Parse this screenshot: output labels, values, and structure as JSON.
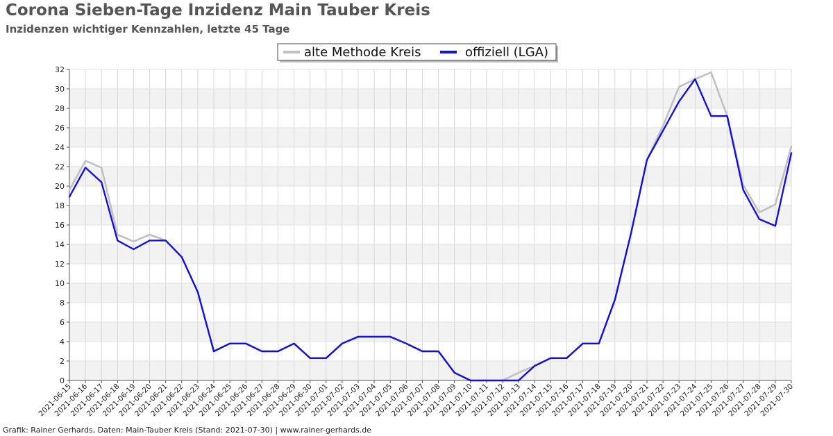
{
  "header": {
    "title": "Corona Sieben-Tage Inzidenz Main Tauber Kreis",
    "subtitle": "Inzidenzen wichtiger Kennzahlen, letzte 45 Tage"
  },
  "footer": {
    "text": "Grafik: Rainer Gerhards, Daten: Main-Tauber Kreis (Stand: 2021-07-30) | www.rainer-gerhards.de"
  },
  "colors": {
    "series_alt": "#c0c0c0",
    "series_offiziell": "#1010e0",
    "band": "#f2f2f2",
    "grid": "#d8d8d8"
  },
  "chart_data": {
    "type": "line",
    "title": "Corona Sieben-Tage Inzidenz Main Tauber Kreis",
    "subtitle": "Inzidenzen wichtiger Kennzahlen, letzte 45 Tage",
    "xlabel": "",
    "ylabel": "",
    "ylim": [
      0,
      32
    ],
    "yticks": [
      0,
      2,
      4,
      6,
      8,
      10,
      12,
      14,
      16,
      18,
      20,
      22,
      24,
      26,
      28,
      30,
      32
    ],
    "grid": true,
    "legend_position": "top-center",
    "x": [
      "2021-06-15",
      "2021-06-16",
      "2021-06-17",
      "2021-06-18",
      "2021-06-19",
      "2021-06-20",
      "2021-06-21",
      "2021-06-22",
      "2021-06-23",
      "2021-06-24",
      "2021-06-25",
      "2021-06-26",
      "2021-06-27",
      "2021-06-28",
      "2021-06-29",
      "2021-06-30",
      "2021-07-01",
      "2021-07-02",
      "2021-07-03",
      "2021-07-04",
      "2021-07-05",
      "2021-07-06",
      "2021-07-07",
      "2021-07-08",
      "2021-07-09",
      "2021-07-10",
      "2021-07-11",
      "2021-07-12",
      "2021-07-13",
      "2021-07-14",
      "2021-07-15",
      "2021-07-16",
      "2021-07-17",
      "2021-07-18",
      "2021-07-19",
      "2021-07-20",
      "2021-07-21",
      "2021-07-22",
      "2021-07-23",
      "2021-07-24",
      "2021-07-25",
      "2021-07-26",
      "2021-07-27",
      "2021-07-28",
      "2021-07-29",
      "2021-07-30"
    ],
    "series": [
      {
        "name": "alte Methode Kreis",
        "color": "#c0c0c0",
        "values": [
          19.6,
          22.6,
          21.9,
          15.0,
          14.3,
          15.0,
          14.4,
          12.7,
          9.1,
          3.0,
          3.8,
          3.8,
          3.0,
          3.0,
          3.8,
          2.3,
          2.3,
          3.8,
          4.5,
          4.5,
          4.5,
          3.8,
          3.0,
          3.0,
          0.8,
          0.0,
          0.0,
          0.0,
          0.8,
          1.5,
          2.3,
          2.3,
          3.8,
          3.8,
          8.3,
          15.1,
          22.7,
          26.2,
          30.2,
          31.0,
          31.7,
          27.2,
          20.1,
          17.3,
          18.1,
          24.1
        ]
      },
      {
        "name": "offiziell (LGA)",
        "color": "#1010e0",
        "values": [
          18.9,
          21.9,
          20.4,
          14.4,
          13.5,
          14.4,
          14.4,
          12.7,
          9.1,
          3.0,
          3.8,
          3.8,
          3.0,
          3.0,
          3.8,
          2.3,
          2.3,
          3.8,
          4.5,
          4.5,
          4.5,
          3.8,
          3.0,
          3.0,
          0.8,
          0.0,
          0.0,
          0.0,
          0.0,
          1.5,
          2.3,
          2.3,
          3.8,
          3.8,
          8.3,
          15.1,
          22.7,
          25.7,
          28.7,
          31.0,
          27.2,
          27.2,
          19.6,
          16.6,
          15.9,
          23.4
        ]
      }
    ]
  }
}
